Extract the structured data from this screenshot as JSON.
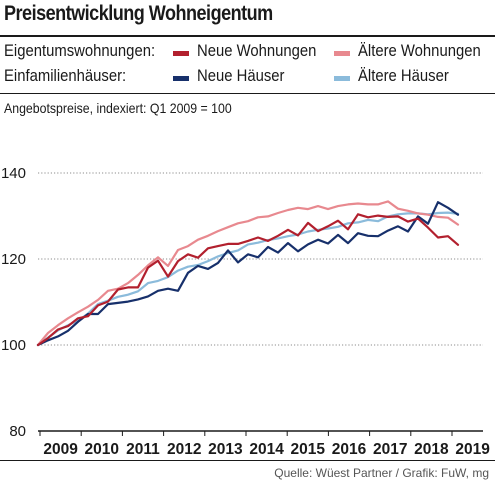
{
  "title": "Preisentwicklung Wohneigentum",
  "legend": {
    "row1_label": "Eigentumswohnungen:",
    "row2_label": "Einfamilienhäuser:"
  },
  "subtitle": "Angebotspreise, indexiert: Q1 2009 = 100",
  "source": "Quelle: Wüest Partner / Grafik: FuW, mg",
  "chart_data": {
    "type": "line",
    "title": "Preisentwicklung Wohneigentum",
    "ylabel": "Angebotspreise, indexiert: Q1 2009 = 100",
    "xlabel": "",
    "x_tick_labels": [
      "2009",
      "2010",
      "2011",
      "2012",
      "2013",
      "2014",
      "2015",
      "2016",
      "2017",
      "2018",
      "2019"
    ],
    "y_ticks": [
      80,
      100,
      120,
      140
    ],
    "ylim": [
      80,
      145
    ],
    "x_start": "Q1 2009",
    "x_end": "Q1 2019",
    "grid": "horizontal",
    "legend_placement": "top",
    "series": [
      {
        "name": "Neue Wohnungen",
        "group": "Eigentumswohnungen",
        "color": "#b2202e",
        "values": [
          100.0,
          101.6,
          103.6,
          104.4,
          106.2,
          106.7,
          109.2,
          110.1,
          112.9,
          113.4,
          113.4,
          118.0,
          119.6,
          115.9,
          119.5,
          121.1,
          120.3,
          122.5,
          123.0,
          123.5,
          123.5,
          124.2,
          125.0,
          124.2,
          125.4,
          126.8,
          125.5,
          128.4,
          126.5,
          127.6,
          128.9,
          126.9,
          130.4,
          129.7,
          130.1,
          129.8,
          129.9,
          128.7,
          129.4,
          127.3,
          125.0,
          125.3,
          123.3
        ]
      },
      {
        "name": "Ältere Wohnungen",
        "group": "Eigentumswohnungen",
        "color": "#e8898f",
        "values": [
          100.0,
          102.8,
          104.6,
          106.2,
          107.6,
          108.9,
          110.5,
          112.6,
          113.1,
          114.4,
          116.3,
          118.5,
          120.4,
          118.4,
          122.1,
          123.0,
          124.5,
          125.4,
          126.5,
          127.4,
          128.3,
          128.8,
          129.7,
          129.9,
          130.7,
          131.4,
          131.9,
          131.6,
          132.3,
          131.6,
          132.3,
          132.7,
          132.9,
          132.7,
          132.7,
          133.4,
          131.7,
          131.2,
          130.6,
          130.3,
          129.8,
          129.6,
          128.0
        ]
      },
      {
        "name": "Neue Häuser",
        "group": "Einfamilienhäuser",
        "color": "#17306b",
        "values": [
          100.0,
          101.1,
          102.0,
          103.3,
          105.4,
          107.2,
          107.2,
          109.5,
          109.8,
          110.1,
          110.6,
          111.3,
          112.6,
          113.1,
          112.6,
          116.8,
          118.4,
          117.7,
          119.1,
          122.0,
          119.2,
          121.1,
          120.4,
          122.8,
          121.5,
          123.7,
          121.8,
          123.4,
          124.5,
          123.6,
          125.6,
          123.7,
          126.0,
          125.4,
          125.3,
          126.6,
          127.6,
          126.4,
          129.9,
          128.2,
          133.2,
          131.9,
          130.3
        ]
      },
      {
        "name": "Ältere Häuser",
        "group": "Einfamilienhäuser",
        "color": "#8bbbdb",
        "values": [
          100.0,
          101.7,
          103.4,
          104.6,
          105.7,
          107.3,
          109.5,
          110.3,
          111.2,
          111.7,
          112.5,
          114.4,
          114.9,
          115.8,
          117.3,
          118.2,
          118.6,
          119.5,
          120.6,
          121.4,
          122.0,
          123.4,
          123.8,
          124.4,
          124.8,
          125.3,
          125.7,
          126.4,
          126.8,
          127.1,
          127.5,
          128.3,
          128.5,
          129.1,
          128.8,
          129.9,
          130.4,
          130.6,
          130.6,
          130.4,
          130.7,
          130.8,
          130.5
        ]
      }
    ]
  }
}
